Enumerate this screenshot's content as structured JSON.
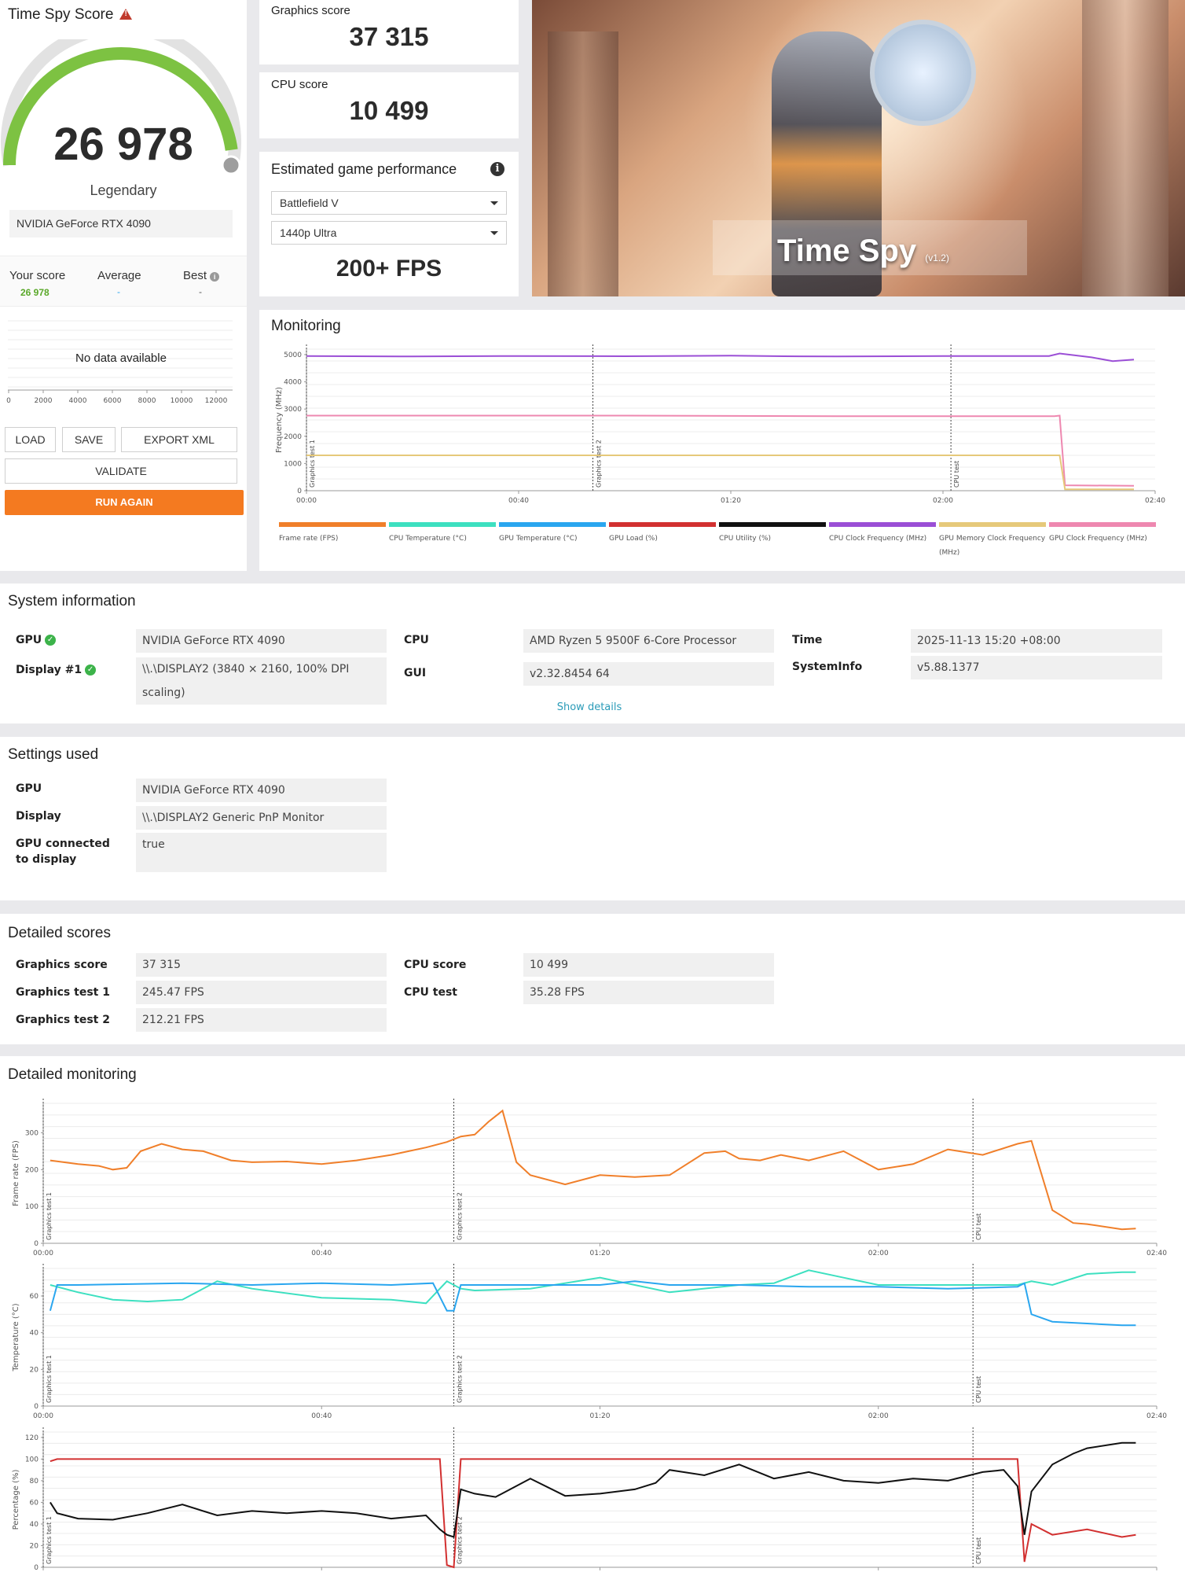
{
  "score_panel": {
    "title": "Time Spy Score",
    "score": "26 978",
    "rating": "Legendary",
    "gpu": "NVIDIA GeForce RTX 4090",
    "your_score_label": "Your score",
    "your_score_value": "26 978",
    "average_label": "Average",
    "average_value": "-",
    "best_label": "Best",
    "best_value": "-",
    "no_data": "No data available",
    "histogram_ticks": [
      "0",
      "2000",
      "4000",
      "6000",
      "8000",
      "10000",
      "12000"
    ],
    "buttons": {
      "load": "LOAD",
      "save": "SAVE",
      "export": "EXPORT XML",
      "validate": "VALIDATE",
      "run_again": "RUN AGAIN"
    },
    "gauge_fill": 0.95,
    "accent_green": "#7dc242",
    "accent_orange": "#f47a20"
  },
  "graphics_card": {
    "label": "Graphics score",
    "value": "37 315"
  },
  "cpu_card": {
    "label": "CPU score",
    "value": "10 499"
  },
  "estimated": {
    "title": "Estimated game performance",
    "game": "Battlefield V",
    "preset": "1440p Ultra",
    "fps": "200+ FPS"
  },
  "hero": {
    "title": "Time Spy",
    "version": "(v1.2)"
  },
  "monitoring": {
    "title": "Monitoring",
    "y_axis_label": "Frequency (MHz)",
    "y_ticks": [
      "0",
      "1000",
      "2000",
      "3000",
      "4000",
      "5000"
    ],
    "x_ticks": [
      "00:00",
      "00:40",
      "01:20",
      "02:00",
      "02:40"
    ],
    "markers": [
      "Graphics test 1",
      "Graphics test 2",
      "CPU test"
    ],
    "legend": [
      {
        "label": "Frame rate (FPS)",
        "color": "#f07f2a"
      },
      {
        "label": "CPU Temperature (°C)",
        "color": "#3de0c0"
      },
      {
        "label": "GPU Temperature (°C)",
        "color": "#2aa6ef"
      },
      {
        "label": "GPU Load (%)",
        "color": "#d23030"
      },
      {
        "label": "CPU Utility (%)",
        "color": "#111111"
      },
      {
        "label": "CPU Clock Frequency (MHz)",
        "color": "#9b4fd6"
      },
      {
        "label": "GPU Memory Clock Frequency (MHz)",
        "color": "#e6c97a"
      },
      {
        "label": "GPU Clock Frequency (MHz)",
        "color": "#ee88b0"
      }
    ]
  },
  "system_info": {
    "title": "System information",
    "gpu_label": "GPU",
    "gpu_value": "NVIDIA GeForce RTX 4090",
    "display_label": "Display #1",
    "display_value": "\\\\.\\DISPLAY2 (3840 × 2160, 100% DPI scaling)",
    "cpu_label": "CPU",
    "cpu_value": "AMD Ryzen 5 9500F 6-Core Processor",
    "gui_label": "GUI",
    "gui_value": "v2.32.8454 64",
    "time_label": "Time",
    "time_value": "2025-11-13 15:20 +08:00",
    "sysinfo_label": "SystemInfo",
    "sysinfo_value": "v5.88.1377",
    "show_details": "Show details"
  },
  "settings": {
    "title": "Settings used",
    "gpu_label": "GPU",
    "gpu_value": "NVIDIA GeForce RTX 4090",
    "display_label": "Display",
    "display_value": "\\\\.\\DISPLAY2 Generic PnP Monitor",
    "connected_label": "GPU connected to display",
    "connected_value": "true"
  },
  "detailed_scores": {
    "title": "Detailed scores",
    "gs_label": "Graphics score",
    "gs_value": "37 315",
    "gt1_label": "Graphics test 1",
    "gt1_value": "245.47 FPS",
    "gt2_label": "Graphics test 2",
    "gt2_value": "212.21 FPS",
    "cpu_label": "CPU score",
    "cpu_value": "10 499",
    "cput_label": "CPU test",
    "cput_value": "35.28 FPS"
  },
  "detailed_monitoring": {
    "title": "Detailed monitoring",
    "x_ticks": [
      "00:00",
      "00:40",
      "01:20",
      "02:00",
      "02:40"
    ],
    "markers": [
      "Graphics test 1",
      "Graphics test 2",
      "CPU test"
    ],
    "charts": [
      {
        "ylabel": "Frame rate (FPS)",
        "y_ticks": [
          "0",
          "100",
          "200",
          "300"
        ]
      },
      {
        "ylabel": "Temperature (°C)",
        "y_ticks": [
          "0",
          "20",
          "40",
          "60"
        ]
      },
      {
        "ylabel": "Percentage (%)",
        "y_ticks": [
          "0",
          "20",
          "40",
          "60",
          "80",
          "100",
          "120"
        ]
      }
    ]
  },
  "chart_data": [
    {
      "type": "line",
      "title": "Monitoring",
      "ylabel": "Frequency (MHz)",
      "xlim": [
        0,
        160
      ],
      "ylim": [
        0,
        5200
      ],
      "series": [
        {
          "name": "CPU Clock Frequency (MHz)",
          "x": [
            0,
            20,
            40,
            60,
            80,
            90,
            100,
            120,
            140,
            142,
            148,
            152,
            156
          ],
          "values": [
            4950,
            4930,
            4950,
            4940,
            4960,
            4940,
            4930,
            4950,
            4950,
            5040,
            4900,
            4760,
            4820
          ]
        },
        {
          "name": "GPU Clock Frequency (MHz)",
          "x": [
            0,
            60,
            100,
            141,
            142,
            143,
            156
          ],
          "values": [
            2760,
            2760,
            2740,
            2740,
            2760,
            200,
            180
          ]
        },
        {
          "name": "GPU Memory Clock Frequency (MHz)",
          "x": [
            0,
            60,
            100,
            141,
            142,
            143,
            156
          ],
          "values": [
            1300,
            1300,
            1300,
            1300,
            1300,
            50,
            50
          ]
        }
      ]
    },
    {
      "type": "line",
      "ylabel": "Frame rate (FPS)",
      "xlim": [
        0,
        160
      ],
      "ylim": [
        0,
        380
      ],
      "series": [
        {
          "name": "Frame rate (FPS)",
          "x": [
            1,
            5,
            8,
            10,
            12,
            14,
            17,
            20,
            23,
            27,
            30,
            35,
            40,
            45,
            50,
            55,
            58,
            60,
            62,
            64,
            66,
            68,
            70,
            75,
            80,
            85,
            90,
            95,
            98,
            100,
            103,
            106,
            110,
            115,
            120,
            125,
            130,
            135,
            140,
            142,
            145,
            148,
            150,
            155,
            157
          ],
          "values": [
            225,
            215,
            210,
            200,
            205,
            250,
            270,
            255,
            250,
            225,
            220,
            222,
            215,
            225,
            240,
            260,
            275,
            290,
            295,
            330,
            360,
            220,
            185,
            160,
            185,
            180,
            185,
            245,
            250,
            230,
            225,
            240,
            225,
            250,
            200,
            215,
            255,
            240,
            270,
            278,
            90,
            55,
            52,
            38,
            40
          ]
        }
      ]
    },
    {
      "type": "line",
      "ylabel": "Temperature (°C)",
      "xlim": [
        0,
        160
      ],
      "ylim": [
        0,
        75
      ],
      "series": [
        {
          "name": "CPU Temperature (°C)",
          "x": [
            1,
            5,
            10,
            15,
            20,
            25,
            30,
            40,
            50,
            55,
            58,
            60,
            62,
            70,
            80,
            85,
            90,
            100,
            105,
            110,
            115,
            120,
            130,
            140,
            142,
            145,
            150,
            155,
            157
          ],
          "values": [
            66,
            62,
            58,
            57,
            58,
            68,
            64,
            59,
            58,
            56,
            68,
            64,
            63,
            64,
            70,
            66,
            62,
            66,
            67,
            74,
            70,
            66,
            66,
            66,
            68,
            66,
            72,
            73,
            73
          ]
        },
        {
          "name": "GPU Temperature (°C)",
          "x": [
            1,
            2,
            5,
            20,
            30,
            40,
            50,
            56,
            58,
            59,
            60,
            62,
            70,
            80,
            85,
            90,
            100,
            110,
            120,
            130,
            140,
            141,
            142,
            145,
            150,
            155,
            157
          ],
          "values": [
            52,
            66,
            66,
            67,
            66,
            67,
            66,
            67,
            52,
            52,
            66,
            66,
            66,
            66,
            68,
            66,
            66,
            65,
            65,
            64,
            65,
            67,
            50,
            46,
            45,
            44,
            44
          ]
        }
      ]
    },
    {
      "type": "line",
      "ylabel": "Percentage (%)",
      "xlim": [
        0,
        160
      ],
      "ylim": [
        0,
        125
      ],
      "series": [
        {
          "name": "GPU Load (%)",
          "x": [
            1,
            2,
            20,
            40,
            57,
            58,
            59,
            60,
            61,
            80,
            100,
            120,
            138,
            140,
            141,
            142,
            145,
            150,
            155,
            157
          ],
          "values": [
            98,
            100,
            100,
            100,
            100,
            2,
            0,
            100,
            100,
            100,
            100,
            100,
            100,
            100,
            5,
            40,
            30,
            35,
            28,
            30
          ]
        },
        {
          "name": "CPU Utility (%)",
          "x": [
            1,
            2,
            5,
            10,
            15,
            20,
            25,
            30,
            35,
            40,
            45,
            50,
            55,
            57,
            58,
            59,
            60,
            62,
            65,
            70,
            75,
            80,
            85,
            88,
            90,
            95,
            100,
            105,
            110,
            115,
            120,
            125,
            130,
            135,
            138,
            140,
            141,
            142,
            145,
            148,
            150,
            155,
            157
          ],
          "values": [
            60,
            50,
            45,
            44,
            50,
            58,
            48,
            52,
            50,
            52,
            50,
            45,
            48,
            35,
            30,
            28,
            72,
            68,
            65,
            82,
            66,
            68,
            72,
            78,
            90,
            85,
            95,
            82,
            88,
            80,
            78,
            82,
            80,
            88,
            90,
            75,
            30,
            70,
            95,
            105,
            110,
            115,
            115
          ]
        }
      ]
    }
  ]
}
